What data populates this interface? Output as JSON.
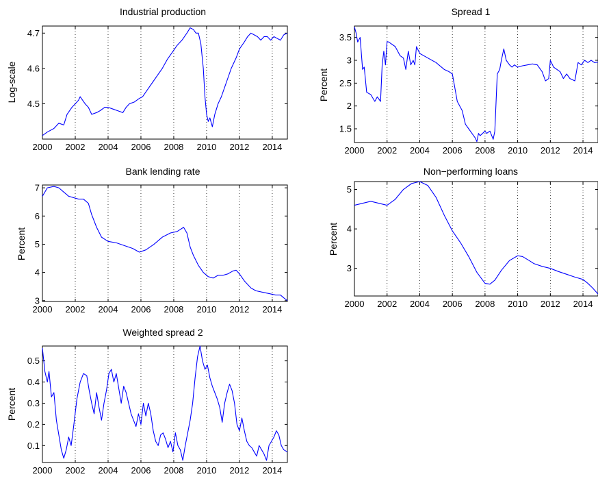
{
  "chart_data": [
    {
      "type": "line",
      "title": "Industrial production",
      "ylabel": "Log-scale",
      "xlim": [
        2000,
        2014.92
      ],
      "ylim": [
        4.4,
        4.72
      ],
      "xticks": [
        2000,
        2002,
        2004,
        2006,
        2008,
        2010,
        2012,
        2014
      ],
      "yticks": [
        4.5,
        4.6,
        4.7
      ],
      "grid": "vertical-dotted",
      "series": [
        {
          "x": [
            2000,
            2000.3,
            2000.7,
            2001,
            2001.3,
            2001.5,
            2001.8,
            2002,
            2002.2,
            2002.3,
            2002.6,
            2002.8,
            2003,
            2003.3,
            2003.5,
            2003.8,
            2004,
            2004.3,
            2004.6,
            2004.9,
            2005.1,
            2005.3,
            2005.6,
            2005.9,
            2006.1,
            2006.4,
            2006.7,
            2007,
            2007.3,
            2007.6,
            2007.9,
            2008.2,
            2008.5,
            2008.8,
            2009,
            2009.2,
            2009.35,
            2009.5,
            2009.65,
            2009.8,
            2009.9,
            2010,
            2010.1,
            2010.2,
            2010.35,
            2010.5,
            2010.7,
            2010.9,
            2011.2,
            2011.5,
            2011.8,
            2012,
            2012.3,
            2012.5,
            2012.7,
            2012.9,
            2013.1,
            2013.3,
            2013.5,
            2013.7,
            2013.9,
            2014.1,
            2014.3,
            2014.5,
            2014.7,
            2014.92
          ],
          "y": [
            4.41,
            4.42,
            4.43,
            4.445,
            4.44,
            4.47,
            4.49,
            4.5,
            4.51,
            4.52,
            4.5,
            4.49,
            4.47,
            4.475,
            4.48,
            4.49,
            4.49,
            4.485,
            4.48,
            4.475,
            4.49,
            4.5,
            4.505,
            4.515,
            4.52,
            4.54,
            4.56,
            4.58,
            4.6,
            4.625,
            4.645,
            4.665,
            4.68,
            4.7,
            4.715,
            4.71,
            4.7,
            4.7,
            4.67,
            4.6,
            4.52,
            4.47,
            4.45,
            4.46,
            4.435,
            4.47,
            4.5,
            4.52,
            4.56,
            4.6,
            4.63,
            4.655,
            4.675,
            4.69,
            4.7,
            4.695,
            4.69,
            4.68,
            4.69,
            4.69,
            4.68,
            4.69,
            4.685,
            4.68,
            4.695,
            4.7
          ]
        }
      ]
    },
    {
      "type": "line",
      "title": "Spread 1",
      "ylabel": "Percent",
      "xlim": [
        2000,
        2014.92
      ],
      "ylim": [
        1.2,
        3.75
      ],
      "xticks": [
        2000,
        2002,
        2004,
        2006,
        2008,
        2010,
        2012,
        2014
      ],
      "yticks": [
        1.5,
        2,
        2.5,
        3,
        3.5
      ],
      "grid": "vertical-dotted",
      "series": [
        {
          "x": [
            2000,
            2000.1,
            2000.2,
            2000.35,
            2000.5,
            2000.6,
            2000.75,
            2001,
            2001.25,
            2001.4,
            2001.6,
            2001.7,
            2001.8,
            2001.9,
            2002,
            2002.1,
            2002.5,
            2002.8,
            2003,
            2003.15,
            2003.3,
            2003.45,
            2003.6,
            2003.7,
            2003.8,
            2004,
            2004.5,
            2005,
            2005.5,
            2005.8,
            2006,
            2006.2,
            2006.3,
            2006.6,
            2006.8,
            2007,
            2007.2,
            2007.4,
            2007.5,
            2007.6,
            2007.7,
            2007.85,
            2008,
            2008.1,
            2008.3,
            2008.5,
            2008.6,
            2008.75,
            2008.9,
            2009,
            2009.15,
            2009.3,
            2009.5,
            2009.65,
            2009.8,
            2010,
            2010.3,
            2010.6,
            2010.9,
            2011.2,
            2011.5,
            2011.7,
            2011.9,
            2012,
            2012.2,
            2012.4,
            2012.6,
            2012.8,
            2013,
            2013.2,
            2013.5,
            2013.7,
            2013.9,
            2014.1,
            2014.3,
            2014.5,
            2014.7,
            2014.92
          ],
          "y": [
            3.73,
            3.6,
            3.4,
            3.5,
            2.8,
            2.85,
            2.3,
            2.25,
            2.1,
            2.2,
            2.1,
            2.9,
            3.2,
            2.9,
            3.41,
            3.4,
            3.3,
            3.1,
            3.05,
            2.8,
            3.2,
            2.9,
            3.0,
            2.9,
            3.3,
            3.15,
            3.05,
            2.95,
            2.8,
            2.75,
            2.7,
            2.3,
            2.1,
            1.9,
            1.6,
            1.5,
            1.4,
            1.3,
            1.22,
            1.4,
            1.35,
            1.4,
            1.45,
            1.4,
            1.45,
            1.27,
            1.45,
            2.7,
            2.8,
            3.0,
            3.25,
            3.0,
            2.9,
            2.85,
            2.9,
            2.85,
            2.88,
            2.9,
            2.92,
            2.9,
            2.75,
            2.55,
            2.6,
            3.0,
            2.85,
            2.8,
            2.75,
            2.6,
            2.7,
            2.6,
            2.55,
            2.95,
            2.9,
            3.0,
            2.95,
            3.0,
            2.95,
            2.96
          ]
        }
      ]
    },
    {
      "type": "line",
      "title": "Bank lending rate",
      "ylabel": "Percent",
      "xlim": [
        2000,
        2014.92
      ],
      "ylim": [
        2.97,
        7.1
      ],
      "xticks": [
        2000,
        2002,
        2004,
        2006,
        2008,
        2010,
        2012,
        2014
      ],
      "yticks": [
        3,
        4,
        5,
        6,
        7
      ],
      "grid": "vertical-dotted",
      "series": [
        {
          "x": [
            2000,
            2000.3,
            2000.7,
            2001,
            2001.3,
            2001.6,
            2001.9,
            2002.2,
            2002.5,
            2002.8,
            2003,
            2003.3,
            2003.6,
            2004,
            2004.5,
            2005,
            2005.5,
            2005.9,
            2006.3,
            2006.8,
            2007.3,
            2007.8,
            2008.2,
            2008.6,
            2008.8,
            2009,
            2009.2,
            2009.5,
            2009.8,
            2010.1,
            2010.4,
            2010.7,
            2011,
            2011.3,
            2011.6,
            2011.8,
            2012,
            2012.3,
            2012.7,
            2013,
            2013.4,
            2013.8,
            2014.2,
            2014.5,
            2014.7,
            2014.92
          ],
          "y": [
            6.7,
            7.0,
            7.05,
            7.0,
            6.85,
            6.7,
            6.65,
            6.6,
            6.6,
            6.45,
            6.05,
            5.6,
            5.25,
            5.1,
            5.05,
            4.95,
            4.85,
            4.72,
            4.8,
            5.0,
            5.25,
            5.4,
            5.45,
            5.6,
            5.4,
            4.9,
            4.6,
            4.25,
            4.0,
            3.85,
            3.8,
            3.9,
            3.9,
            3.95,
            4.05,
            4.08,
            3.95,
            3.7,
            3.45,
            3.35,
            3.3,
            3.25,
            3.2,
            3.2,
            3.1,
            3.0
          ]
        }
      ]
    },
    {
      "type": "line",
      "title": "Non−performing loans",
      "ylabel": "Percent",
      "xlim": [
        2000,
        2014.92
      ],
      "ylim": [
        2.3,
        5.2
      ],
      "xticks": [
        2000,
        2002,
        2004,
        2006,
        2008,
        2010,
        2012,
        2014
      ],
      "yticks": [
        3,
        4,
        5
      ],
      "grid": "vertical-dotted",
      "series": [
        {
          "x": [
            2000,
            2000.5,
            2001,
            2001.5,
            2002,
            2002.5,
            2003,
            2003.5,
            2004,
            2004.5,
            2005,
            2005.5,
            2006,
            2006.5,
            2007,
            2007.5,
            2008,
            2008.3,
            2008.6,
            2009,
            2009.5,
            2010,
            2010.3,
            2010.7,
            2011,
            2011.5,
            2012,
            2012.5,
            2013,
            2013.5,
            2014,
            2014.3,
            2014.6,
            2014.92
          ],
          "y": [
            4.6,
            4.65,
            4.7,
            4.65,
            4.6,
            4.75,
            5.0,
            5.15,
            5.2,
            5.1,
            4.8,
            4.35,
            3.95,
            3.65,
            3.3,
            2.9,
            2.62,
            2.6,
            2.7,
            2.95,
            3.2,
            3.32,
            3.3,
            3.2,
            3.12,
            3.05,
            3.0,
            2.92,
            2.85,
            2.78,
            2.72,
            2.62,
            2.5,
            2.35
          ]
        }
      ]
    },
    {
      "type": "line",
      "title": "Weighted spread 2",
      "ylabel": "Percent",
      "xlim": [
        2000,
        2014.92
      ],
      "ylim": [
        0.02,
        0.57
      ],
      "xticks": [
        2000,
        2002,
        2004,
        2006,
        2008,
        2010,
        2012,
        2014
      ],
      "yticks": [
        0.1,
        0.2,
        0.3,
        0.4,
        0.5
      ],
      "grid": "vertical-dotted",
      "series": [
        {
          "x": [
            2000,
            2000.15,
            2000.3,
            2000.4,
            2000.55,
            2000.7,
            2000.85,
            2001,
            2001.15,
            2001.3,
            2001.45,
            2001.6,
            2001.75,
            2001.9,
            2002.1,
            2002.3,
            2002.5,
            2002.7,
            2002.85,
            2003,
            2003.15,
            2003.3,
            2003.45,
            2003.6,
            2003.75,
            2003.9,
            2004.05,
            2004.2,
            2004.35,
            2004.5,
            2004.65,
            2004.8,
            2004.95,
            2005.1,
            2005.25,
            2005.4,
            2005.55,
            2005.7,
            2005.85,
            2006,
            2006.15,
            2006.3,
            2006.45,
            2006.6,
            2006.75,
            2006.9,
            2007.05,
            2007.2,
            2007.35,
            2007.5,
            2007.65,
            2007.8,
            2007.95,
            2008.1,
            2008.25,
            2008.4,
            2008.55,
            2008.7,
            2008.85,
            2009,
            2009.15,
            2009.3,
            2009.45,
            2009.6,
            2009.75,
            2009.9,
            2010.05,
            2010.2,
            2010.35,
            2010.5,
            2010.65,
            2010.8,
            2010.95,
            2011.1,
            2011.25,
            2011.4,
            2011.55,
            2011.7,
            2011.85,
            2012,
            2012.15,
            2012.3,
            2012.45,
            2012.6,
            2012.75,
            2012.9,
            2013.05,
            2013.2,
            2013.35,
            2013.5,
            2013.65,
            2013.8,
            2013.95,
            2014.1,
            2014.25,
            2014.4,
            2014.55,
            2014.7,
            2014.92
          ],
          "y": [
            0.56,
            0.45,
            0.4,
            0.45,
            0.33,
            0.35,
            0.22,
            0.15,
            0.08,
            0.04,
            0.08,
            0.14,
            0.1,
            0.19,
            0.32,
            0.4,
            0.44,
            0.43,
            0.36,
            0.3,
            0.25,
            0.35,
            0.28,
            0.22,
            0.3,
            0.36,
            0.44,
            0.46,
            0.4,
            0.44,
            0.37,
            0.3,
            0.38,
            0.35,
            0.3,
            0.25,
            0.22,
            0.19,
            0.25,
            0.2,
            0.3,
            0.24,
            0.3,
            0.25,
            0.17,
            0.12,
            0.1,
            0.15,
            0.16,
            0.13,
            0.09,
            0.12,
            0.07,
            0.16,
            0.1,
            0.08,
            0.03,
            0.1,
            0.16,
            0.22,
            0.3,
            0.42,
            0.52,
            0.57,
            0.5,
            0.46,
            0.48,
            0.42,
            0.38,
            0.35,
            0.32,
            0.28,
            0.21,
            0.3,
            0.35,
            0.39,
            0.36,
            0.3,
            0.2,
            0.17,
            0.23,
            0.17,
            0.12,
            0.1,
            0.09,
            0.07,
            0.05,
            0.1,
            0.08,
            0.06,
            0.03,
            0.1,
            0.12,
            0.14,
            0.17,
            0.15,
            0.1,
            0.08,
            0.07
          ]
        }
      ]
    }
  ]
}
